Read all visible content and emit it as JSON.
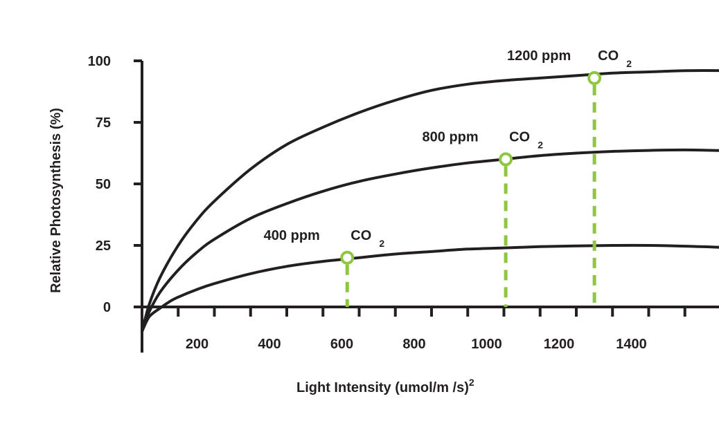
{
  "chart_data": {
    "type": "line",
    "xlabel": "Light Intensity (umol/m  /s)",
    "xlabel_superscript": "2",
    "ylabel": "Relative Photosynthesis (%)",
    "xlim": [
      0,
      1650
    ],
    "ylim": [
      0,
      100
    ],
    "x_ticks": [
      200,
      400,
      600,
      800,
      1000,
      1200,
      1400
    ],
    "x_tick_labels": [
      "200",
      "400",
      "600",
      "800",
      "1000",
      "1200",
      "1400"
    ],
    "y_ticks": [
      0,
      25,
      50,
      75,
      100
    ],
    "y_tick_labels": [
      "0",
      "25",
      "50",
      "75",
      "100"
    ],
    "grid": false,
    "legend": false,
    "series": [
      {
        "name": "1200 ppm CO2",
        "x": [
          0,
          20,
          50,
          100,
          150,
          200,
          300,
          400,
          500,
          600,
          700,
          800,
          900,
          1000,
          1100,
          1200,
          1300,
          1400,
          1500,
          1600,
          1650
        ],
        "y": [
          -10,
          1,
          12,
          25,
          35,
          43,
          56,
          66,
          73,
          79,
          84,
          88,
          90.5,
          92,
          93,
          94,
          95,
          95.5,
          96,
          96,
          95.5
        ]
      },
      {
        "name": "800 ppm CO2",
        "x": [
          0,
          20,
          50,
          100,
          150,
          200,
          300,
          400,
          500,
          600,
          700,
          800,
          900,
          1000,
          1100,
          1200,
          1300,
          1400,
          1500,
          1600,
          1650
        ],
        "y": [
          -10,
          -2,
          6,
          15,
          22,
          27.5,
          36,
          42,
          47,
          51,
          54,
          56.5,
          58.5,
          60,
          61.5,
          62.5,
          63.2,
          63.6,
          63.8,
          63.5,
          63
        ]
      },
      {
        "name": "400 ppm CO2",
        "x": [
          0,
          20,
          50,
          80,
          100,
          150,
          200,
          300,
          400,
          500,
          600,
          700,
          800,
          900,
          1000,
          1100,
          1200,
          1300,
          1400,
          1500,
          1600,
          1650
        ],
        "y": [
          -10,
          -4,
          -0.5,
          2.5,
          4,
          7,
          9.5,
          13.5,
          16.5,
          18.5,
          20,
          21.5,
          22.5,
          23.5,
          24,
          24.5,
          24.8,
          25,
          25,
          24.7,
          24.2,
          23.8
        ]
      }
    ],
    "annotations": [
      {
        "label": "1200 ppm",
        "co2": "CO",
        "sub": "2",
        "x": 1250,
        "y": 93
      },
      {
        "label": "800 ppm",
        "co2": "CO",
        "sub": "2",
        "x": 1005,
        "y": 60
      },
      {
        "label": "400 ppm",
        "co2": "CO",
        "sub": "2",
        "x": 567,
        "y": 20
      }
    ],
    "colors": {
      "line": "#231f20",
      "marker": "#8dc63f",
      "axis": "#231f20"
    }
  }
}
